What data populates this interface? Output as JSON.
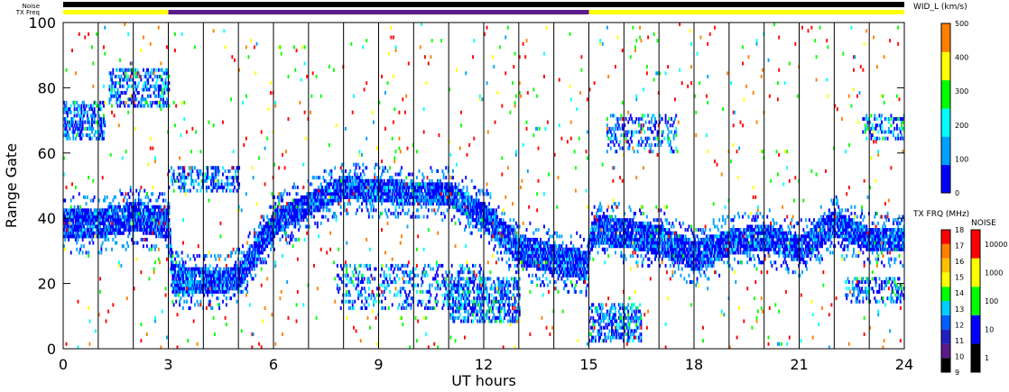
{
  "top_labels": {
    "noise": "Noise",
    "txfreq": "TX Freq"
  },
  "chart_data": {
    "type": "heatmap",
    "title": "",
    "xlabel": "UT hours",
    "ylabel": "Range Gate",
    "xlim": [
      0,
      24
    ],
    "ylim": [
      0,
      100
    ],
    "xticks": [
      "0",
      "3",
      "6",
      "9",
      "12",
      "15",
      "18",
      "21",
      "24"
    ],
    "yticks": [
      "0",
      "20",
      "40",
      "60",
      "80",
      "100"
    ],
    "vertical_lines_ut": [
      1,
      2,
      3,
      4,
      5,
      6,
      7,
      8,
      9,
      10,
      11,
      12,
      13,
      14,
      15,
      16,
      17,
      18,
      19,
      20,
      21,
      22,
      23
    ],
    "backscatter_band": [
      {
        "ut": 0.0,
        "center": 38,
        "width": 8
      },
      {
        "ut": 1.0,
        "center": 38,
        "width": 8
      },
      {
        "ut": 2.0,
        "center": 40,
        "width": 8
      },
      {
        "ut": 3.0,
        "center": 38,
        "width": 8
      },
      {
        "ut": 3.1,
        "center": 21,
        "width": 8
      },
      {
        "ut": 4.5,
        "center": 20,
        "width": 6
      },
      {
        "ut": 5.0,
        "center": 22,
        "width": 7
      },
      {
        "ut": 6.0,
        "center": 38,
        "width": 7
      },
      {
        "ut": 7.0,
        "center": 44,
        "width": 6
      },
      {
        "ut": 8.0,
        "center": 49,
        "width": 6
      },
      {
        "ut": 9.0,
        "center": 48,
        "width": 6
      },
      {
        "ut": 10.0,
        "center": 47,
        "width": 6
      },
      {
        "ut": 11.0,
        "center": 47,
        "width": 6
      },
      {
        "ut": 12.0,
        "center": 40,
        "width": 7
      },
      {
        "ut": 13.0,
        "center": 30,
        "width": 8
      },
      {
        "ut": 14.0,
        "center": 27,
        "width": 8
      },
      {
        "ut": 14.9,
        "center": 25,
        "width": 8
      },
      {
        "ut": 15.1,
        "center": 36,
        "width": 8
      },
      {
        "ut": 16.0,
        "center": 35,
        "width": 8
      },
      {
        "ut": 17.0,
        "center": 33,
        "width": 8
      },
      {
        "ut": 18.0,
        "center": 28,
        "width": 8
      },
      {
        "ut": 19.0,
        "center": 32,
        "width": 7
      },
      {
        "ut": 20.0,
        "center": 34,
        "width": 7
      },
      {
        "ut": 21.0,
        "center": 30,
        "width": 7
      },
      {
        "ut": 22.0,
        "center": 38,
        "width": 7
      },
      {
        "ut": 23.0,
        "center": 33,
        "width": 6
      },
      {
        "ut": 24.0,
        "center": 33,
        "width": 6
      }
    ],
    "extra_patches": [
      {
        "ut_start": 0.0,
        "ut_end": 1.2,
        "g_start": 64,
        "g_end": 76,
        "density": 0.45
      },
      {
        "ut_start": 1.3,
        "ut_end": 3.0,
        "g_start": 74,
        "g_end": 86,
        "density": 0.35
      },
      {
        "ut_start": 3.0,
        "ut_end": 5.0,
        "g_start": 48,
        "g_end": 56,
        "density": 0.35
      },
      {
        "ut_start": 7.8,
        "ut_end": 12.0,
        "g_start": 12,
        "g_end": 26,
        "density": 0.25
      },
      {
        "ut_start": 11.0,
        "ut_end": 13.0,
        "g_start": 8,
        "g_end": 22,
        "density": 0.45
      },
      {
        "ut_start": 15.0,
        "ut_end": 16.5,
        "g_start": 2,
        "g_end": 14,
        "density": 0.45
      },
      {
        "ut_start": 15.5,
        "ut_end": 17.5,
        "g_start": 60,
        "g_end": 72,
        "density": 0.25
      },
      {
        "ut_start": 22.3,
        "ut_end": 24.0,
        "g_start": 14,
        "g_end": 22,
        "density": 0.35
      },
      {
        "ut_start": 22.8,
        "ut_end": 24.0,
        "g_start": 64,
        "g_end": 72,
        "density": 0.35
      }
    ],
    "scatter_density": 0.035,
    "colorbars": [
      {
        "title": "WID_L (km/s)",
        "range": [
          0,
          500
        ],
        "ticks": [
          "0",
          "100",
          "200",
          "300",
          "400",
          "500"
        ]
      },
      {
        "title": "TX FRQ (MHz)",
        "range": [
          9,
          18
        ],
        "ticks": [
          "9",
          "10",
          "11",
          "12",
          "13",
          "14",
          "15",
          "16",
          "17",
          "18"
        ]
      },
      {
        "title": "NOISE",
        "scale": "log",
        "range": [
          1,
          100000
        ],
        "ticks": [
          "1",
          "10",
          "100",
          "1000",
          "10000"
        ]
      }
    ],
    "top_bars": [
      {
        "name": "Noise",
        "segments": [
          {
            "ut_start": 0,
            "ut_end": 24,
            "color": "#000000"
          }
        ]
      },
      {
        "name": "TX Freq",
        "segments": [
          {
            "ut_start": 0,
            "ut_end": 3,
            "color": "#ffff00"
          },
          {
            "ut_start": 3,
            "ut_end": 15,
            "color": "#5a1a8c"
          },
          {
            "ut_start": 15,
            "ut_end": 24,
            "color": "#ffff00"
          }
        ]
      }
    ],
    "colors": {
      "velocity_scale": [
        "#0000ff",
        "#00a0ff",
        "#00ffff",
        "#00ff00",
        "#ffff00",
        "#ff8000",
        "#ff0000"
      ],
      "freq_scale": [
        "#000000",
        "#5a1a8c",
        "#2020c0",
        "#0060ff",
        "#00d0ff",
        "#00ff00",
        "#ffff00",
        "#ffc000",
        "#ff8000",
        "#ff0000"
      ],
      "noise_scale": [
        "#000000",
        "#0000ff",
        "#00ff00",
        "#ffff00",
        "#ff0000"
      ]
    }
  }
}
